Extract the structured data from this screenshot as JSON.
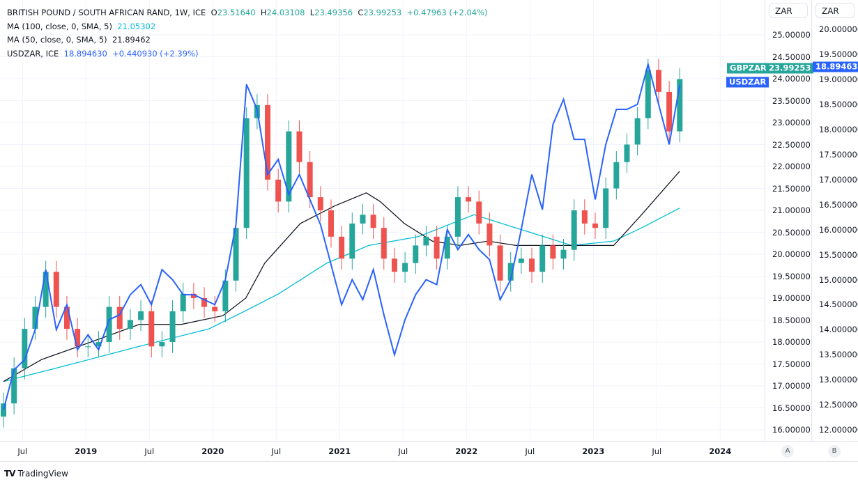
{
  "legend": {
    "symbol": "BRITISH POUND / SOUTH AFRICAN RAND, 1W, ICE",
    "o_label": "O",
    "o": "23.51640",
    "h_label": "H",
    "h": "24.03108",
    "l_label": "L",
    "l": "23.49356",
    "c_label": "C",
    "c": "23.99253",
    "change": "+0.47963 (+2.04%)",
    "ma100_label": "MA (100, close, 0, SMA, 5)",
    "ma100_value": "21.05302",
    "ma50_label": "MA (50, close, 0, SMA, 5)",
    "ma50_value": "21.89462",
    "usd_label": "USDZAR, ICE",
    "usd_value": "18.894630",
    "usd_change": "+0.440930 (+2.39%)"
  },
  "axis_a": {
    "unit": "ZAR",
    "ticks": [
      "25.00000",
      "24.50000",
      "24.00000",
      "23.50000",
      "23.00000",
      "22.50000",
      "22.00000",
      "21.50000",
      "21.00000",
      "20.50000",
      "20.00000",
      "19.50000",
      "19.00000",
      "18.50000",
      "18.00000",
      "17.50000",
      "17.00000",
      "16.50000",
      "16.00000"
    ],
    "button": "A"
  },
  "axis_b": {
    "unit": "ZAR",
    "ticks": [
      "20.000000",
      "19.500000",
      "19.000000",
      "18.500000",
      "18.000000",
      "17.500000",
      "17.000000",
      "16.500000",
      "16.000000",
      "15.500000",
      "15.000000",
      "14.500000",
      "14.000000",
      "13.500000",
      "13.000000",
      "12.500000",
      "12.000000"
    ],
    "button": "B"
  },
  "tags": {
    "gbp_name": "GBPZAR",
    "gbp_price": "23.99253",
    "usd_name": "USDZAR",
    "usd_price": "18.894630"
  },
  "time_axis": [
    {
      "label": "Jul",
      "t": 2018.5
    },
    {
      "label": "2019",
      "t": 2019.0
    },
    {
      "label": "Jul",
      "t": 2019.5
    },
    {
      "label": "2020",
      "t": 2020.0
    },
    {
      "label": "Jul",
      "t": 2020.5
    },
    {
      "label": "2021",
      "t": 2021.0
    },
    {
      "label": "Jul",
      "t": 2021.5
    },
    {
      "label": "2022",
      "t": 2022.0
    },
    {
      "label": "Jul",
      "t": 2022.5
    },
    {
      "label": "2023",
      "t": 2023.0
    },
    {
      "label": "Jul",
      "t": 2023.5
    },
    {
      "label": "2024",
      "t": 2024.0
    }
  ],
  "logo": "TradingView",
  "colors": {
    "up": "#26a69a",
    "down": "#ef5350",
    "usd": "#2962ff",
    "ma50": "#131722",
    "ma100": "#00bcd4"
  },
  "chart_data": {
    "type": "line",
    "start_t": 2018.35,
    "step_t": 0.0833,
    "gbpzar_close": [
      16.6,
      17.4,
      18.3,
      18.8,
      19.6,
      18.8,
      18.3,
      17.9,
      17.9,
      18.0,
      18.8,
      18.3,
      18.5,
      18.7,
      17.9,
      18.0,
      18.7,
      19.1,
      19.0,
      18.8,
      18.7,
      19.4,
      20.6,
      23.1,
      23.4,
      21.7,
      21.2,
      22.8,
      22.1,
      21.3,
      21.0,
      20.4,
      19.9,
      20.7,
      20.9,
      20.6,
      19.9,
      19.6,
      19.8,
      20.2,
      20.4,
      19.9,
      20.4,
      21.3,
      21.2,
      20.7,
      20.2,
      19.4,
      19.8,
      19.9,
      19.6,
      20.2,
      19.9,
      20.1,
      21.0,
      20.7,
      20.6,
      21.5,
      22.1,
      22.5,
      23.1,
      24.2,
      23.7,
      22.8,
      23.99
    ],
    "usdzar_close": [
      12.4,
      13.2,
      13.4,
      14.0,
      15.2,
      14.0,
      14.5,
      13.6,
      13.9,
      13.6,
      14.2,
      14.3,
      14.7,
      14.9,
      14.5,
      15.2,
      15.0,
      14.7,
      14.7,
      14.6,
      14.5,
      15.0,
      16.1,
      18.9,
      18.4,
      17.1,
      17.4,
      16.7,
      17.1,
      16.6,
      16.1,
      15.3,
      14.5,
      15.0,
      14.6,
      15.2,
      14.3,
      13.5,
      14.2,
      14.7,
      15.0,
      14.9,
      16.0,
      15.6,
      15.9,
      15.6,
      15.4,
      14.6,
      15.0,
      16.0,
      17.1,
      16.4,
      18.1,
      18.6,
      17.8,
      17.8,
      16.6,
      17.7,
      18.4,
      18.4,
      18.5,
      19.3,
      18.5,
      17.7,
      18.89
    ],
    "ma50": [
      [
        2018.35,
        17.1
      ],
      [
        2018.65,
        17.6
      ],
      [
        2019.04,
        18.0
      ],
      [
        2019.42,
        18.4
      ],
      [
        2019.75,
        18.4
      ],
      [
        2020.08,
        18.6
      ],
      [
        2020.26,
        19.0
      ],
      [
        2020.41,
        19.8
      ],
      [
        2020.69,
        20.7
      ],
      [
        2020.96,
        21.1
      ],
      [
        2021.21,
        21.4
      ],
      [
        2021.32,
        21.2
      ],
      [
        2021.51,
        20.7
      ],
      [
        2021.73,
        20.3
      ],
      [
        2021.95,
        20.2
      ],
      [
        2022.17,
        20.3
      ],
      [
        2022.39,
        20.2
      ],
      [
        2022.72,
        20.2
      ],
      [
        2022.99,
        20.2
      ],
      [
        2023.16,
        20.2
      ],
      [
        2023.38,
        20.9
      ],
      [
        2023.68,
        21.89
      ]
    ],
    "ma100": [
      [
        2018.35,
        17.1
      ],
      [
        2018.76,
        17.4
      ],
      [
        2019.42,
        17.9
      ],
      [
        2019.97,
        18.3
      ],
      [
        2020.25,
        18.7
      ],
      [
        2020.52,
        19.1
      ],
      [
        2020.9,
        19.8
      ],
      [
        2021.23,
        20.2
      ],
      [
        2021.62,
        20.4
      ],
      [
        2022.06,
        20.9
      ],
      [
        2022.39,
        20.6
      ],
      [
        2022.83,
        20.2
      ],
      [
        2023.16,
        20.3
      ],
      [
        2023.38,
        20.6
      ],
      [
        2023.68,
        21.05
      ]
    ],
    "ylim_left": [
      16.0,
      25.0
    ],
    "ylim_right": [
      12.0,
      20.0
    ]
  }
}
